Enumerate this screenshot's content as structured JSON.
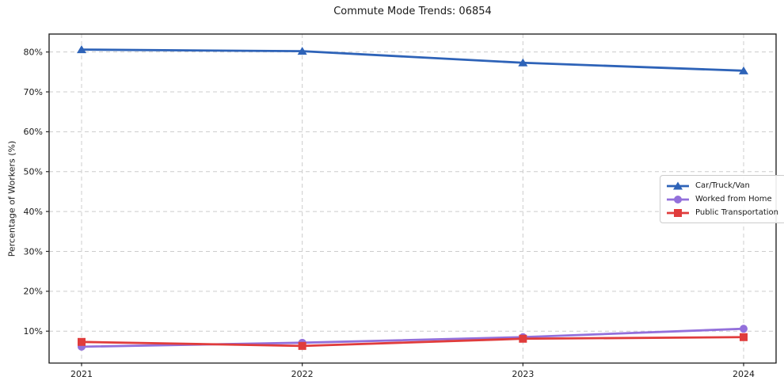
{
  "chart_data": {
    "type": "line",
    "title": "Commute Mode Trends: 06854",
    "xlabel": "",
    "ylabel": "Percentage of Workers (%)",
    "categories": [
      "2021",
      "2022",
      "2023",
      "2024"
    ],
    "series": [
      {
        "name": "Car/Truck/Van",
        "marker": "triangle",
        "color": "#2e63b8",
        "values": [
          80.6,
          80.2,
          77.3,
          75.3
        ]
      },
      {
        "name": "Worked from Home",
        "marker": "circle",
        "color": "#9370db",
        "values": [
          6.1,
          7.1,
          8.5,
          10.6
        ]
      },
      {
        "name": "Public Transportation",
        "marker": "square",
        "color": "#e03c3c",
        "values": [
          7.3,
          6.3,
          8.1,
          8.5
        ]
      }
    ],
    "ylim": [
      2,
      84.5
    ],
    "yticks": [
      10,
      20,
      30,
      40,
      50,
      60,
      70,
      80
    ],
    "ytick_labels": [
      "10%",
      "20%",
      "30%",
      "40%",
      "50%",
      "60%",
      "70%",
      "80%"
    ],
    "xtick_labels": [
      "2021",
      "2022",
      "2023",
      "2024"
    ],
    "grid": true,
    "grid_style": "dashed",
    "legend_position": "center-right",
    "colors": {
      "grid": "#cccccc",
      "frame": "#262626",
      "text": "#1a1a1a",
      "background": "#ffffff"
    }
  }
}
